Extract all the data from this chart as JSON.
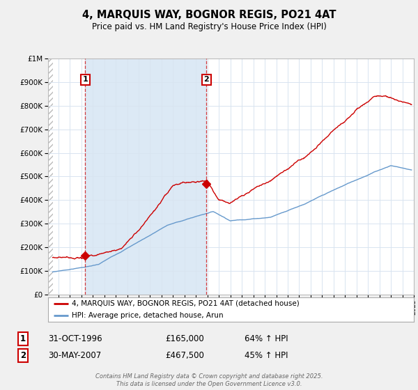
{
  "title": "4, MARQUIS WAY, BOGNOR REGIS, PO21 4AT",
  "subtitle": "Price paid vs. HM Land Registry's House Price Index (HPI)",
  "legend_line1": "4, MARQUIS WAY, BOGNOR REGIS, PO21 4AT (detached house)",
  "legend_line2": "HPI: Average price, detached house, Arun",
  "annotation1_label": "1",
  "annotation1_date": "31-OCT-1996",
  "annotation1_price": "£165,000",
  "annotation1_hpi": "64% ↑ HPI",
  "annotation2_label": "2",
  "annotation2_date": "30-MAY-2007",
  "annotation2_price": "£467,500",
  "annotation2_hpi": "45% ↑ HPI",
  "footer": "Contains HM Land Registry data © Crown copyright and database right 2025.\nThis data is licensed under the Open Government Licence v3.0.",
  "red_color": "#cc0000",
  "blue_color": "#6699cc",
  "blue_fill": "#dce9f5",
  "hatch_color": "#cccccc",
  "background_color": "#f0f0f0",
  "plot_bg_color": "#ffffff",
  "grid_color": "#d8e4f0",
  "ylim": [
    0,
    1000000
  ],
  "xmin": 1993.6,
  "xmax": 2025.5,
  "purchase1_x": 1996.83,
  "purchase1_y": 165000,
  "purchase2_x": 2007.41,
  "purchase2_y": 467500
}
